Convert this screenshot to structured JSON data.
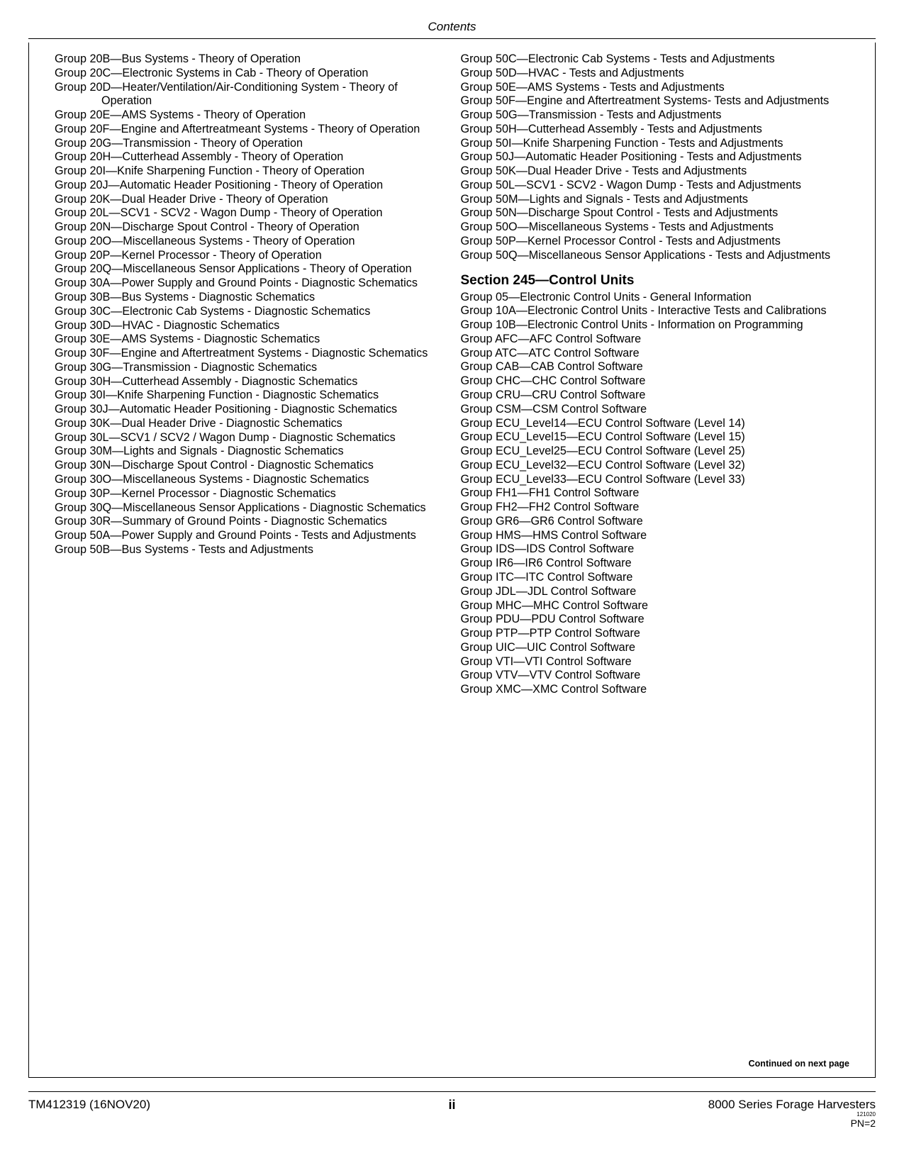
{
  "header": {
    "title": "Contents"
  },
  "continued_text": "Continued on next page",
  "footer": {
    "left": "TM412319 (16NOV20)",
    "center": "ii",
    "right_main": "8000 Series Forage Harvesters",
    "right_tiny": "121020",
    "right_pn": "PN=2"
  },
  "section245": {
    "heading": "Section 245—Control Units"
  },
  "left_col": [
    "Group 20B—Bus Systems - Theory of Operation",
    "Group 20C—Electronic Systems in Cab - Theory of Operation",
    "Group 20D—Heater/Ventilation/Air-Conditioning System - Theory of Operation",
    "Group 20E—AMS Systems - Theory of Operation",
    "Group 20F—Engine and Aftertreatmeant Systems - Theory of Operation",
    "Group 20G—Transmission - Theory of Operation",
    "Group 20H—Cutterhead Assembly - Theory of Operation",
    "Group 20I—Knife Sharpening Function - Theory of Operation",
    "Group 20J—Automatic Header Positioning - Theory of Operation",
    "Group 20K—Dual Header Drive - Theory of Operation",
    "Group 20L—SCV1 - SCV2 - Wagon Dump - Theory of Operation",
    "Group 20N—Discharge Spout Control - Theory of Operation",
    "Group 20O—Miscellaneous Systems - Theory of Operation",
    "Group 20P—Kernel Processor - Theory of Operation",
    "Group 20Q—Miscellaneous Sensor Applications - Theory of Operation",
    "Group 30A—Power Supply and Ground Points - Diagnostic Schematics",
    "Group 30B—Bus Systems - Diagnostic Schematics",
    "Group 30C—Electronic Cab Systems - Diagnostic Schematics",
    "Group 30D—HVAC - Diagnostic Schematics",
    "Group 30E—AMS Systems - Diagnostic Schematics",
    "Group 30F—Engine and Aftertreatment Systems - Diagnostic Schematics",
    "Group 30G—Transmission - Diagnostic Schematics",
    "Group 30H—Cutterhead Assembly - Diagnostic Schematics",
    "Group 30I—Knife Sharpening Function - Diagnostic Schematics",
    "Group 30J—Automatic Header Positioning - Diagnostic Schematics",
    "Group 30K—Dual Header Drive - Diagnostic Schematics",
    "Group 30L—SCV1 / SCV2 / Wagon Dump - Diagnostic Schematics",
    "Group 30M—Lights and Signals - Diagnostic Schematics",
    "Group 30N—Discharge Spout Control - Diagnostic Schematics",
    "Group 30O—Miscellaneous Systems - Diagnostic Schematics",
    "Group 30P—Kernel Processor - Diagnostic Schematics",
    "Group 30Q—Miscellaneous Sensor Applications - Diagnostic Schematics",
    "Group 30R—Summary of Ground Points - Diagnostic Schematics",
    "Group 50A—Power Supply and Ground Points - Tests and Adjustments",
    "Group 50B—Bus Systems - Tests and Adjustments"
  ],
  "right_col_top": [
    "Group 50C—Electronic Cab Systems - Tests and Adjustments",
    "Group 50D—HVAC - Tests and Adjustments",
    "Group 50E—AMS Systems - Tests and Adjustments",
    "Group 50F—Engine and Aftertreatment Systems- Tests and Adjustments",
    "Group 50G—Transmission - Tests and Adjustments",
    "Group 50H—Cutterhead Assembly - Tests and Adjustments",
    "Group 50I—Knife Sharpening Function - Tests and Adjustments",
    "Group 50J—Automatic Header Positioning - Tests and Adjustments",
    "Group 50K—Dual Header Drive - Tests and Adjustments",
    "Group 50L—SCV1 - SCV2 - Wagon Dump - Tests and Adjustments",
    "Group 50M—Lights and Signals - Tests and Adjustments",
    "Group 50N—Discharge Spout Control - Tests and Adjustments",
    "Group 50O—Miscellaneous Systems - Tests and Adjustments",
    "Group 50P—Kernel Processor Control - Tests and Adjustments",
    "Group 50Q—Miscellaneous Sensor Applications - Tests and Adjustments"
  ],
  "right_col_section": [
    "Group 05—Electronic Control Units - General Information",
    "Group 10A—Electronic Control Units - Interactive Tests and Calibrations",
    "Group 10B—Electronic Control Units - Information on Programming",
    "Group AFC—AFC Control Software",
    "Group ATC—ATC Control Software",
    "Group CAB—CAB Control Software",
    "Group CHC—CHC Control Software",
    "Group CRU—CRU Control Software",
    "Group CSM—CSM Control Software",
    "Group ECU_Level14—ECU Control Software (Level 14)",
    "Group ECU_Level15—ECU Control Software (Level 15)",
    "Group ECU_Level25—ECU Control Software (Level 25)",
    "Group ECU_Level32—ECU Control Software (Level 32)",
    "Group ECU_Level33—ECU Control Software (Level 33)",
    "Group FH1—FH1 Control Software",
    "Group FH2—FH2 Control Software",
    "Group GR6—GR6 Control Software",
    "Group HMS—HMS Control Software",
    "Group IDS—IDS Control Software",
    "Group IR6—IR6 Control Software",
    "Group ITC—ITC Control Software",
    "Group JDL—JDL Control Software",
    "Group MHC—MHC Control Software",
    "Group PDU—PDU Control Software",
    "Group PTP—PTP Control Software",
    "Group UIC—UIC Control Software",
    "Group VTI—VTI Control Software",
    "Group VTV—VTV Control Software",
    "Group XMC—XMC Control Software"
  ]
}
